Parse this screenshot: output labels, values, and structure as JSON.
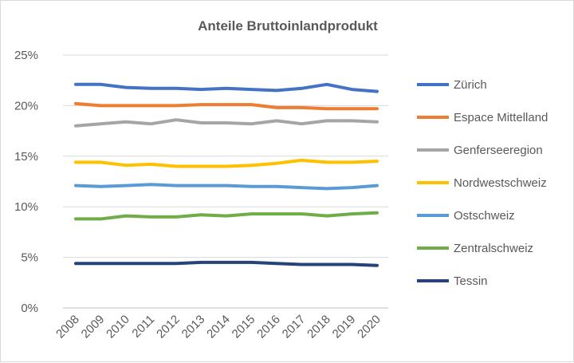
{
  "chart_data": {
    "type": "line",
    "title": "Anteile Bruttoinlandprodukt",
    "x": [
      "2008",
      "2009",
      "2010",
      "2011",
      "2012",
      "2013",
      "2014",
      "2015",
      "2016",
      "2017",
      "2018",
      "2019",
      "2020"
    ],
    "ylim": [
      0,
      25
    ],
    "yticks": [
      0,
      5,
      10,
      15,
      20,
      25
    ],
    "ytick_labels": [
      "0%",
      "5%",
      "10%",
      "15%",
      "20%",
      "25%"
    ],
    "grid": true,
    "legend_position": "right",
    "series": [
      {
        "name": "Zürich",
        "color": "#4472C4",
        "values": [
          22.1,
          22.1,
          21.8,
          21.7,
          21.7,
          21.6,
          21.7,
          21.6,
          21.5,
          21.7,
          22.1,
          21.6,
          21.4
        ]
      },
      {
        "name": "Espace Mittelland",
        "color": "#ED7D31",
        "values": [
          20.2,
          20.0,
          20.0,
          20.0,
          20.0,
          20.1,
          20.1,
          20.1,
          19.8,
          19.8,
          19.7,
          19.7,
          19.7
        ]
      },
      {
        "name": "Genferseeregion",
        "color": "#A5A5A5",
        "values": [
          18.0,
          18.2,
          18.4,
          18.2,
          18.6,
          18.3,
          18.3,
          18.2,
          18.5,
          18.2,
          18.5,
          18.5,
          18.4
        ]
      },
      {
        "name": "Nordwestschweiz",
        "color": "#FFC000",
        "values": [
          14.4,
          14.4,
          14.1,
          14.2,
          14.0,
          14.0,
          14.0,
          14.1,
          14.3,
          14.6,
          14.4,
          14.4,
          14.5
        ]
      },
      {
        "name": "Ostschweiz",
        "color": "#5B9BD5",
        "values": [
          12.1,
          12.0,
          12.1,
          12.2,
          12.1,
          12.1,
          12.1,
          12.0,
          12.0,
          11.9,
          11.8,
          11.9,
          12.1
        ]
      },
      {
        "name": "Zentralschweiz",
        "color": "#70AD47",
        "values": [
          8.8,
          8.8,
          9.1,
          9.0,
          9.0,
          9.2,
          9.1,
          9.3,
          9.3,
          9.3,
          9.1,
          9.3,
          9.4
        ]
      },
      {
        "name": "Tessin",
        "color": "#264478",
        "values": [
          4.4,
          4.4,
          4.4,
          4.4,
          4.4,
          4.5,
          4.5,
          4.5,
          4.4,
          4.3,
          4.3,
          4.3,
          4.2
        ]
      }
    ]
  }
}
